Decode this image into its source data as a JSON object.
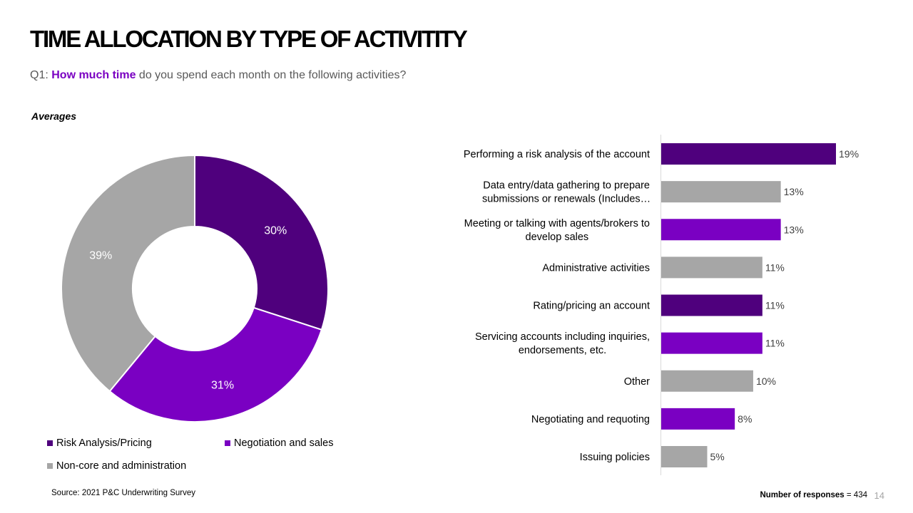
{
  "slide": {
    "title": "TIME ALLOCATION BY TYPE OF ACTIVITITY",
    "question_prefix": "Q1: ",
    "question_highlight": "How much time",
    "question_rest": " do you spend each month on the following activities?",
    "averages_label": "Averages",
    "source": "Source: 2021 P&C Underwriting Survey",
    "responses_label": "Number of responses",
    "responses_value": " = 434",
    "page_number": "14"
  },
  "colors": {
    "dark_purple": "#4f007d",
    "purple": "#7a00c2",
    "grey": "#a6a6a6"
  },
  "chart_data": [
    {
      "type": "donut",
      "slices": [
        {
          "name": "Risk Analysis/Pricing",
          "value": 30,
          "label": "30%",
          "color": "#4f007d"
        },
        {
          "name": "Negotiation and sales",
          "value": 31,
          "label": "31%",
          "color": "#7a00c2"
        },
        {
          "name": "Non-core and administration",
          "value": 39,
          "label": "39%",
          "color": "#a6a6a6"
        }
      ],
      "legend": "bottom"
    },
    {
      "type": "bar",
      "orientation": "horizontal",
      "categories": [
        [
          "Performing a risk analysis of the account"
        ],
        [
          "Data entry/data gathering to prepare",
          "submissions or renewals (Includes…"
        ],
        [
          "Meeting or talking with agents/brokers to",
          "develop sales"
        ],
        [
          "Administrative activities"
        ],
        [
          "Rating/pricing an account"
        ],
        [
          "Servicing accounts including inquiries,",
          "endorsements, etc."
        ],
        [
          "Other"
        ],
        [
          "Negotiating and requoting"
        ],
        [
          "Issuing policies"
        ]
      ],
      "values": [
        19,
        13,
        13,
        11,
        11,
        11,
        10,
        8,
        5
      ],
      "labels": [
        "19%",
        "13%",
        "13%",
        "11%",
        "11%",
        "11%",
        "10%",
        "8%",
        "5%"
      ],
      "colors": [
        "#4f007d",
        "#a6a6a6",
        "#7a00c2",
        "#a6a6a6",
        "#4f007d",
        "#7a00c2",
        "#a6a6a6",
        "#7a00c2",
        "#a6a6a6"
      ],
      "xlim": [
        0,
        19
      ]
    }
  ]
}
